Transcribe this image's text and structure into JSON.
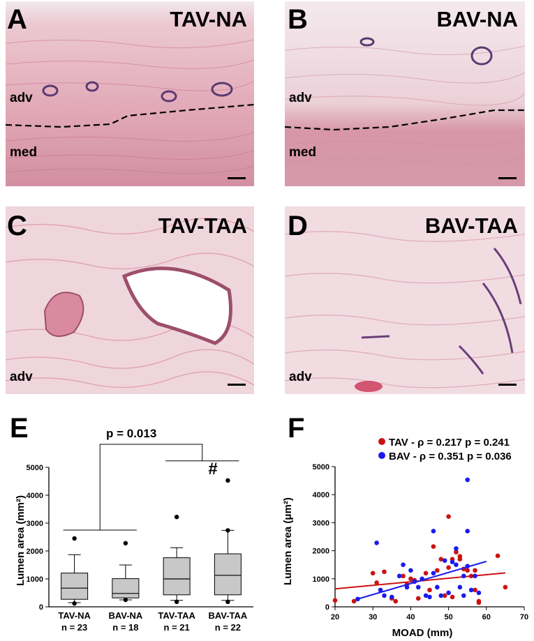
{
  "panels": {
    "A": {
      "label": "A",
      "title": "TAV-NA",
      "layers": [
        "adv",
        "med"
      ]
    },
    "B": {
      "label": "B",
      "title": "BAV-NA",
      "layers": [
        "adv",
        "med"
      ]
    },
    "C": {
      "label": "C",
      "title": "TAV-TAA",
      "layers": [
        "adv"
      ]
    },
    "D": {
      "label": "D",
      "title": "BAV-TAA",
      "layers": [
        "adv"
      ]
    }
  },
  "panel_E": {
    "label": "E",
    "pvalue": "p = 0.013",
    "hash": "#"
  },
  "panel_F": {
    "label": "F"
  },
  "colors": {
    "tav": "#cc1111",
    "bav": "#1a1aee",
    "box_fill": "#c8c8c8",
    "tissue": "#e7b9c3"
  },
  "chart_data": [
    {
      "type": "box",
      "title": "",
      "xlabel": "",
      "ylabel": "Lumen area (mm²)",
      "ylim": [
        0,
        5000
      ],
      "yticks": [
        0,
        1000,
        2000,
        3000,
        4000,
        5000
      ],
      "categories": [
        "TAV-NA",
        "BAV-NA",
        "TAV-TAA",
        "BAV-TAA"
      ],
      "n_labels": [
        "n = 23",
        "n = 18",
        "n = 21",
        "n = 22"
      ],
      "boxes": [
        {
          "whisker_low": 150,
          "q1": 270,
          "median": 670,
          "q3": 1210,
          "whisker_high": 1870,
          "outliers": [
            120,
            2450
          ]
        },
        {
          "whisker_low": 250,
          "q1": 320,
          "median": 480,
          "q3": 1010,
          "whisker_high": 1500,
          "outliers": [
            250,
            2280
          ]
        },
        {
          "whisker_low": 230,
          "q1": 430,
          "median": 1000,
          "q3": 1760,
          "whisker_high": 2120,
          "outliers": [
            180,
            3220
          ]
        },
        {
          "whisker_low": 230,
          "q1": 430,
          "median": 1130,
          "q3": 1900,
          "whisker_high": 2740,
          "outliers": [
            180,
            2740,
            4530
          ]
        }
      ]
    },
    {
      "type": "scatter",
      "title": "",
      "xlabel": "MOAD (mm)",
      "ylabel": "Lumen area (μm²)",
      "xlim": [
        20,
        70
      ],
      "ylim": [
        0,
        5000
      ],
      "xticks": [
        20,
        30,
        40,
        50,
        60,
        70
      ],
      "yticks": [
        0,
        1000,
        2000,
        3000,
        4000,
        5000
      ],
      "legend": [
        "TAV - ρ = 0.217 p = 0.241",
        "BAV - ρ = 0.351 p = 0.036"
      ],
      "legend_position": "top",
      "series": [
        {
          "name": "TAV",
          "color": "#cc1111",
          "points": [
            [
              20,
              230
            ],
            [
              25,
              200
            ],
            [
              30,
              1200
            ],
            [
              31,
              860
            ],
            [
              33,
              1250
            ],
            [
              35,
              300
            ],
            [
              36,
              200
            ],
            [
              38,
              1100
            ],
            [
              39,
              800
            ],
            [
              40,
              1000
            ],
            [
              41,
              950
            ],
            [
              42,
              300
            ],
            [
              44,
              1200
            ],
            [
              45,
              600
            ],
            [
              46,
              2150
            ],
            [
              47,
              1300
            ],
            [
              48,
              1700
            ],
            [
              49,
              400
            ],
            [
              50,
              1400
            ],
            [
              50,
              3220
            ],
            [
              51,
              1700
            ],
            [
              51,
              350
            ],
            [
              52,
              1950
            ],
            [
              53,
              1800
            ],
            [
              53,
              1700
            ],
            [
              54,
              1350
            ],
            [
              55,
              1300
            ],
            [
              56,
              1100
            ],
            [
              57,
              1300
            ],
            [
              57,
              600
            ],
            [
              58,
              200
            ],
            [
              58,
              150
            ],
            [
              63,
              1820
            ],
            [
              65,
              700
            ]
          ],
          "trend": [
            [
              20,
              640
            ],
            [
              65,
              1210
            ]
          ]
        },
        {
          "name": "BAV",
          "color": "#1a1aee",
          "points": [
            [
              26,
              280
            ],
            [
              31,
              2280
            ],
            [
              32,
              600
            ],
            [
              33,
              400
            ],
            [
              35,
              350
            ],
            [
              37,
              1100
            ],
            [
              38,
              1500
            ],
            [
              39,
              700
            ],
            [
              40,
              1300
            ],
            [
              41,
              900
            ],
            [
              42,
              700
            ],
            [
              43,
              1000
            ],
            [
              44,
              400
            ],
            [
              45,
              350
            ],
            [
              46,
              1200
            ],
            [
              46,
              2700
            ],
            [
              47,
              700
            ],
            [
              48,
              400
            ],
            [
              49,
              1650
            ],
            [
              50,
              500
            ],
            [
              51,
              1600
            ],
            [
              52,
              2080
            ],
            [
              52,
              1500
            ],
            [
              53,
              700
            ],
            [
              54,
              1100
            ],
            [
              54,
              400
            ],
            [
              55,
              2700
            ],
            [
              55,
              1450
            ],
            [
              55,
              4530
            ],
            [
              56,
              600
            ],
            [
              57,
              1100
            ],
            [
              58,
              500
            ]
          ],
          "trend": [
            [
              26,
              280
            ],
            [
              60,
              1620
            ]
          ]
        }
      ]
    }
  ]
}
